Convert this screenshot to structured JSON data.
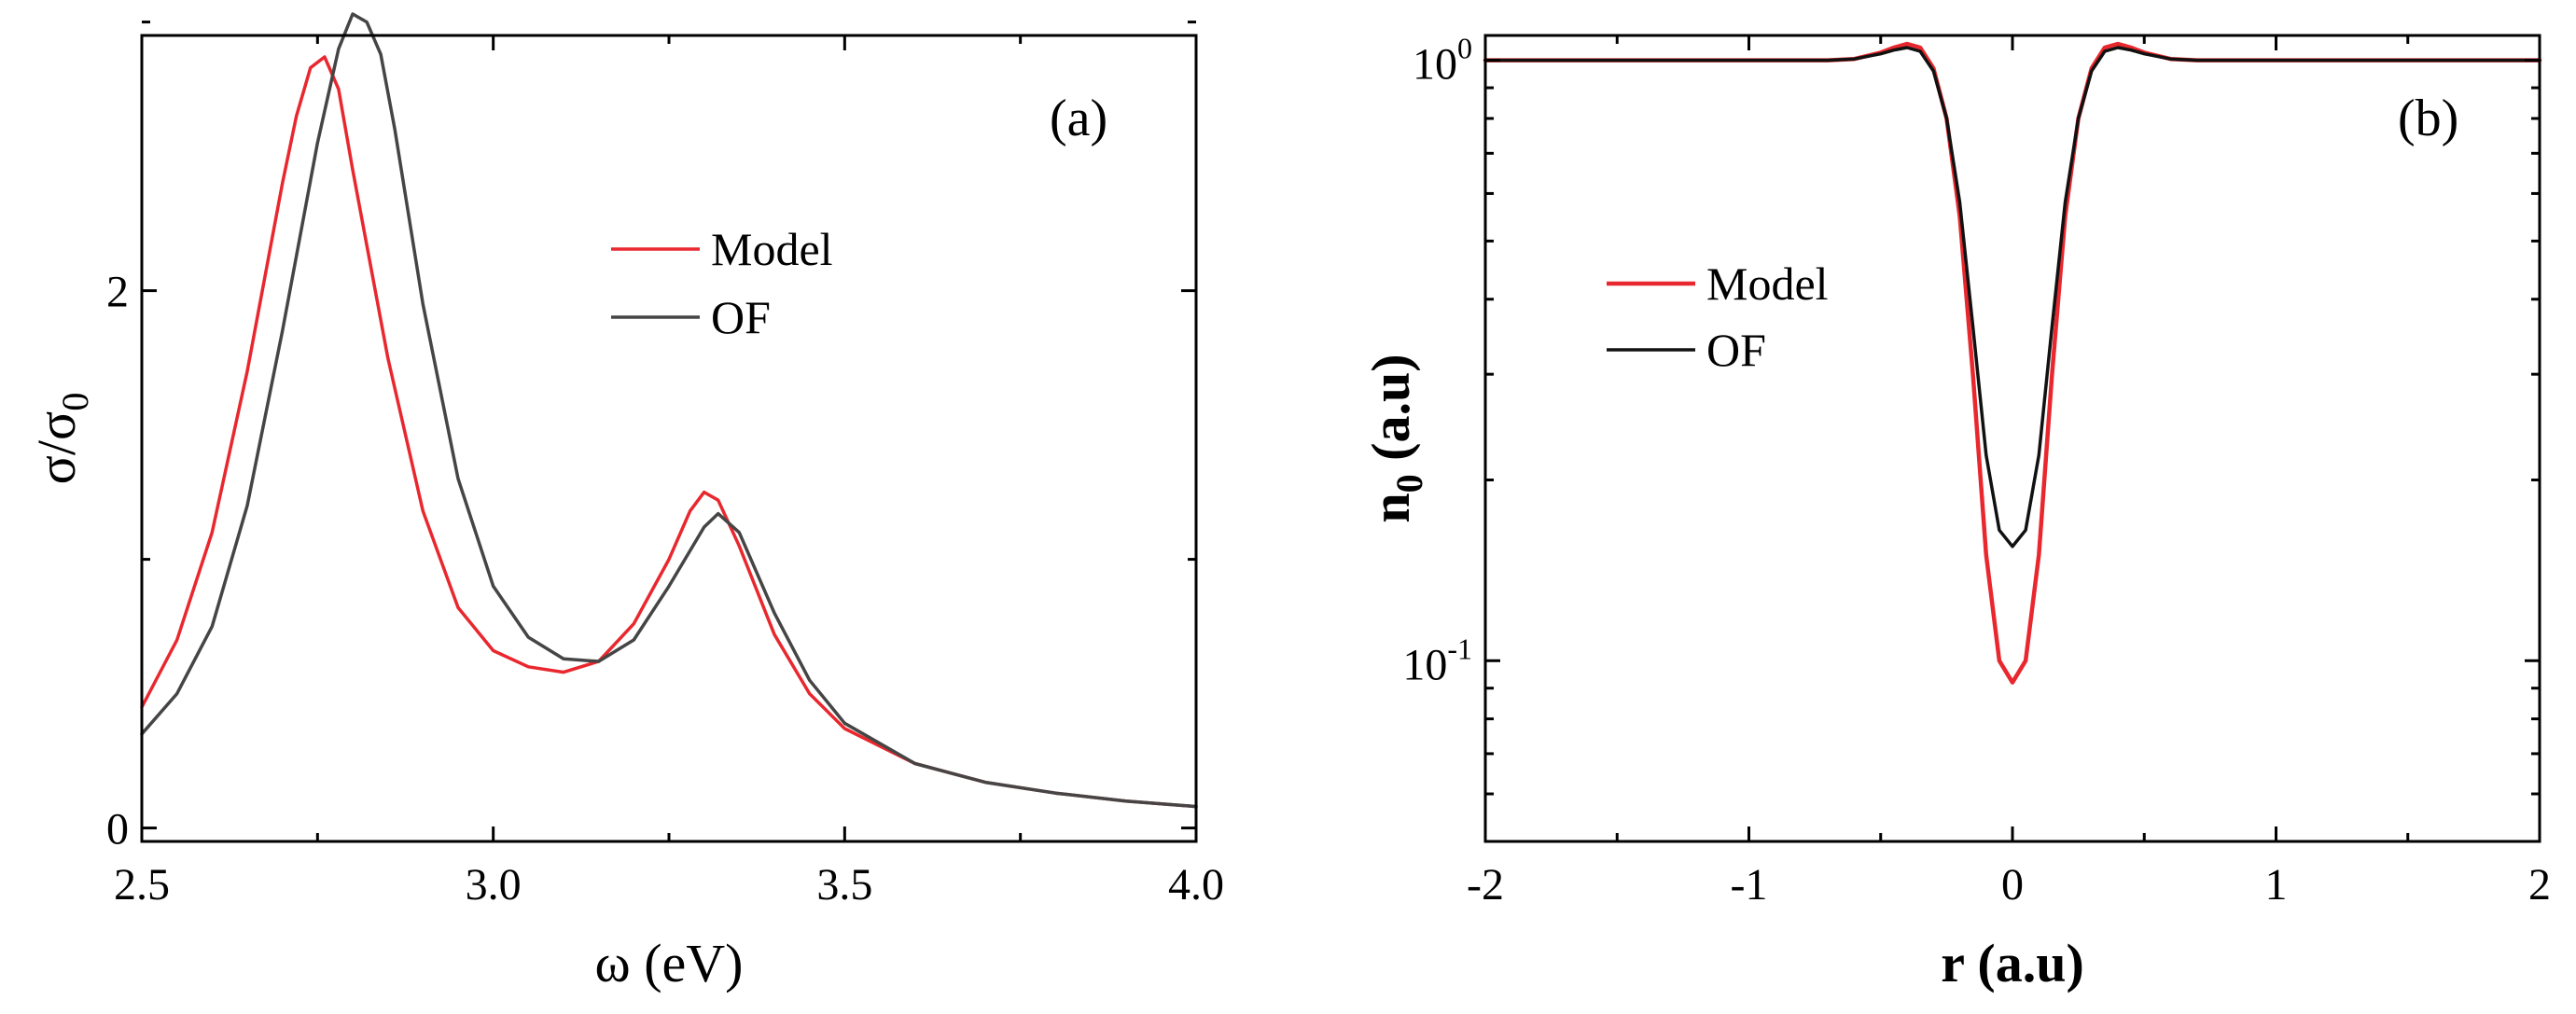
{
  "chart_data": [
    {
      "type": "line",
      "panel_label": "(a)",
      "xlabel": "ω (eV)",
      "ylabel_main": "σ/σ",
      "ylabel_sub": "0",
      "xlim": [
        2.5,
        4.0
      ],
      "ylim": [
        -0.05,
        2.95
      ],
      "xticks": [
        2.5,
        3.0,
        3.5,
        4.0
      ],
      "xtick_labels": [
        "2.5",
        "3.0",
        "3.5",
        "4.0"
      ],
      "yticks": [
        0,
        2
      ],
      "ytick_labels": [
        "0",
        "2"
      ],
      "legend_position": "center",
      "series": [
        {
          "name": "Model",
          "color": "#e8282e",
          "x": [
            2.5,
            2.55,
            2.6,
            2.65,
            2.7,
            2.72,
            2.74,
            2.76,
            2.78,
            2.8,
            2.85,
            2.9,
            2.95,
            3.0,
            3.05,
            3.1,
            3.15,
            3.2,
            3.25,
            3.28,
            3.3,
            3.32,
            3.35,
            3.4,
            3.45,
            3.5,
            3.6,
            3.7,
            3.8,
            3.9,
            4.0
          ],
          "y": [
            0.45,
            0.7,
            1.1,
            1.7,
            2.4,
            2.65,
            2.83,
            2.87,
            2.75,
            2.45,
            1.75,
            1.18,
            0.82,
            0.66,
            0.6,
            0.58,
            0.62,
            0.76,
            1.0,
            1.18,
            1.25,
            1.22,
            1.05,
            0.72,
            0.5,
            0.37,
            0.24,
            0.17,
            0.13,
            0.1,
            0.08
          ]
        },
        {
          "name": "OF",
          "color": "#454545",
          "x": [
            2.5,
            2.55,
            2.6,
            2.65,
            2.7,
            2.75,
            2.78,
            2.8,
            2.82,
            2.84,
            2.86,
            2.9,
            2.95,
            3.0,
            3.05,
            3.1,
            3.15,
            3.2,
            3.25,
            3.3,
            3.32,
            3.35,
            3.4,
            3.45,
            3.5,
            3.6,
            3.7,
            3.8,
            3.9,
            4.0
          ],
          "y": [
            0.35,
            0.5,
            0.75,
            1.2,
            1.85,
            2.55,
            2.9,
            3.03,
            3.0,
            2.88,
            2.6,
            1.95,
            1.3,
            0.9,
            0.71,
            0.63,
            0.62,
            0.7,
            0.9,
            1.12,
            1.17,
            1.1,
            0.8,
            0.55,
            0.39,
            0.24,
            0.17,
            0.13,
            0.1,
            0.08
          ]
        }
      ]
    },
    {
      "type": "line",
      "panel_label": "(b)",
      "xlabel": "r (a.u)",
      "ylabel_main": "n",
      "ylabel_sub": "0",
      "ylabel_tail": " (a.u)",
      "yscale": "log",
      "xlim": [
        -2,
        2
      ],
      "ylim": [
        0.05,
        1.1
      ],
      "xticks": [
        -2,
        -1,
        0,
        1,
        2
      ],
      "xtick_labels": [
        "-2",
        "-1",
        "0",
        "1",
        "2"
      ],
      "yticks": [
        1,
        0.1
      ],
      "ytick_labels": [
        {
          "base": "10",
          "exp": "0"
        },
        {
          "base": "10",
          "exp": "-1"
        }
      ],
      "legend_position": "center-left",
      "series": [
        {
          "name": "Model",
          "color": "#e8282e",
          "x": [
            -2,
            -0.7,
            -0.6,
            -0.5,
            -0.45,
            -0.4,
            -0.35,
            -0.3,
            -0.25,
            -0.2,
            -0.15,
            -0.1,
            -0.05,
            0,
            0.05,
            0.1,
            0.15,
            0.2,
            0.25,
            0.3,
            0.35,
            0.4,
            0.45,
            0.5,
            0.6,
            0.7,
            2
          ],
          "y": [
            1.0,
            1.0,
            1.005,
            1.03,
            1.05,
            1.065,
            1.05,
            0.97,
            0.8,
            0.55,
            0.3,
            0.15,
            0.1,
            0.092,
            0.1,
            0.15,
            0.3,
            0.55,
            0.8,
            0.97,
            1.05,
            1.065,
            1.05,
            1.03,
            1.005,
            1.0,
            1.0
          ]
        },
        {
          "name": "OF",
          "color": "#111111",
          "x": [
            -2,
            -0.7,
            -0.6,
            -0.5,
            -0.45,
            -0.4,
            -0.35,
            -0.3,
            -0.25,
            -0.2,
            -0.15,
            -0.1,
            -0.05,
            0,
            0.05,
            0.1,
            0.15,
            0.2,
            0.25,
            0.3,
            0.35,
            0.4,
            0.45,
            0.5,
            0.6,
            0.7,
            2
          ],
          "y": [
            1.0,
            1.0,
            1.005,
            1.025,
            1.04,
            1.05,
            1.035,
            0.96,
            0.8,
            0.58,
            0.36,
            0.22,
            0.165,
            0.155,
            0.165,
            0.22,
            0.36,
            0.58,
            0.8,
            0.96,
            1.035,
            1.05,
            1.04,
            1.025,
            1.005,
            1.0,
            1.0
          ]
        }
      ]
    }
  ]
}
